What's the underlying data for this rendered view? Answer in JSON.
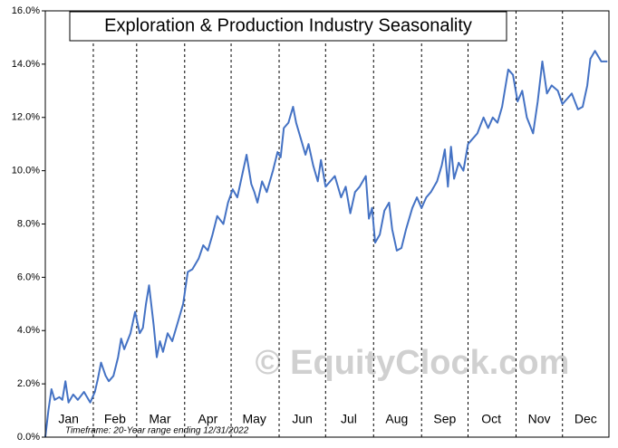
{
  "chart_data": {
    "type": "line",
    "title": "Exploration & Production Industry Seasonality",
    "watermark": "© EquityClock.com",
    "note": "Timeframe: 20-Year range ending 12/31/2022",
    "xlim": [
      1,
      365
    ],
    "xticks": [
      {
        "value": 16,
        "label": "Jan"
      },
      {
        "value": 46,
        "label": "Feb"
      },
      {
        "value": 75,
        "label": "Mar"
      },
      {
        "value": 106,
        "label": "Apr"
      },
      {
        "value": 136,
        "label": "May"
      },
      {
        "value": 167,
        "label": "Jun"
      },
      {
        "value": 197,
        "label": "Jul"
      },
      {
        "value": 228,
        "label": "Aug"
      },
      {
        "value": 259,
        "label": "Sep"
      },
      {
        "value": 289,
        "label": "Oct"
      },
      {
        "value": 320,
        "label": "Nov"
      },
      {
        "value": 350,
        "label": "Dec"
      }
    ],
    "xgrid": [
      32,
      60,
      91,
      121,
      152,
      182,
      213,
      244,
      274,
      305,
      335
    ],
    "ylim": [
      0,
      16
    ],
    "yticks": [
      {
        "value": 0,
        "label": "0.0%"
      },
      {
        "value": 2,
        "label": "2.0%"
      },
      {
        "value": 4,
        "label": "4.0%"
      },
      {
        "value": 6,
        "label": "6.0%"
      },
      {
        "value": 8,
        "label": "8.0%"
      },
      {
        "value": 10,
        "label": "10.0%"
      },
      {
        "value": 12,
        "label": "12.0%"
      },
      {
        "value": 14,
        "label": "14.0%"
      },
      {
        "value": 16,
        "label": "16.0%"
      }
    ],
    "color": "#4472c4",
    "x": [
      1,
      3,
      5,
      7,
      10,
      12,
      14,
      16,
      19,
      22,
      26,
      30,
      33,
      35,
      37,
      40,
      42,
      45,
      48,
      50,
      52,
      56,
      59,
      62,
      64,
      66,
      68,
      71,
      73,
      75,
      77,
      80,
      83,
      87,
      90,
      93,
      96,
      100,
      103,
      106,
      109,
      112,
      116,
      119,
      122,
      125,
      128,
      131,
      134,
      136,
      138,
      141,
      144,
      148,
      151,
      153,
      155,
      158,
      161,
      163,
      166,
      169,
      171,
      174,
      177,
      179,
      182,
      185,
      188,
      192,
      195,
      198,
      201,
      204,
      208,
      210,
      212,
      214,
      217,
      220,
      223,
      225,
      228,
      231,
      234,
      238,
      241,
      244,
      247,
      250,
      254,
      257,
      259,
      261,
      263,
      265,
      268,
      271,
      274,
      277,
      280,
      284,
      287,
      290,
      293,
      296,
      300,
      303,
      306,
      309,
      312,
      316,
      319,
      322,
      325,
      328,
      332,
      335,
      338,
      341,
      345,
      348,
      351,
      353,
      356,
      360,
      364
    ],
    "values": [
      0,
      1.0,
      1.8,
      1.4,
      1.5,
      1.4,
      2.1,
      1.3,
      1.6,
      1.4,
      1.7,
      1.3,
      1.7,
      2.2,
      2.8,
      2.3,
      2.1,
      2.3,
      3.0,
      3.7,
      3.3,
      3.9,
      4.7,
      3.9,
      4.1,
      5.0,
      5.7,
      4.2,
      3.0,
      3.6,
      3.2,
      3.9,
      3.6,
      4.4,
      5.0,
      6.2,
      6.3,
      6.7,
      7.2,
      7.0,
      7.6,
      8.3,
      8.0,
      8.8,
      9.3,
      9.0,
      9.8,
      10.6,
      9.5,
      9.2,
      8.8,
      9.6,
      9.2,
      10.0,
      10.7,
      10.5,
      11.6,
      11.8,
      12.4,
      11.8,
      11.2,
      10.6,
      11.0,
      10.2,
      9.6,
      10.4,
      9.4,
      9.6,
      9.8,
      9.0,
      9.4,
      8.4,
      9.2,
      9.4,
      9.8,
      8.2,
      8.6,
      7.3,
      7.6,
      8.5,
      8.8,
      7.8,
      7.0,
      7.1,
      7.8,
      8.6,
      9.0,
      8.6,
      9.0,
      9.2,
      9.6,
      10.2,
      10.8,
      9.4,
      10.9,
      9.7,
      10.3,
      10.0,
      11.0,
      11.2,
      11.4,
      12.0,
      11.6,
      12.0,
      11.8,
      12.4,
      13.8,
      13.6,
      12.6,
      13.0,
      12.0,
      11.4,
      12.6,
      14.1,
      12.9,
      13.2,
      13.0,
      12.5,
      12.7,
      12.9,
      12.3,
      12.4,
      13.2,
      14.2,
      14.5,
      14.1,
      14.1
    ]
  }
}
